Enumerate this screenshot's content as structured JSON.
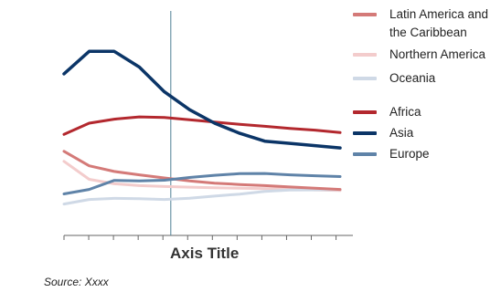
{
  "chart_data": {
    "type": "line",
    "x": [
      1,
      2,
      3,
      4,
      5,
      6,
      7,
      8,
      9,
      10,
      11,
      12
    ],
    "xlabel": "Axis Title",
    "ylabel": "",
    "ylim": [
      0,
      100
    ],
    "grid": false,
    "legend_position": "right",
    "marker_x": 5,
    "series": [
      {
        "name": "Latin America and the Caribbean",
        "color": "#d47a78",
        "width": 3,
        "values": [
          37.5,
          31.0,
          28.5,
          27.0,
          25.6,
          24.3,
          23.3,
          22.7,
          22.2,
          21.6,
          21.0,
          20.5
        ]
      },
      {
        "name": "Northern America",
        "color": "#f3cccc",
        "width": 3,
        "values": [
          33.0,
          25.0,
          23.0,
          22.2,
          21.8,
          21.5,
          21.2,
          21.0,
          20.8,
          20.6,
          20.3,
          20.0
        ]
      },
      {
        "name": "Oceania",
        "color": "#cfd9e6",
        "width": 3,
        "values": [
          14.0,
          16.0,
          16.5,
          16.4,
          16.0,
          16.6,
          17.5,
          18.4,
          19.6,
          20.2,
          20.3,
          20.4
        ]
      },
      {
        "name": "Africa",
        "color": "#b3282e",
        "width": 3,
        "values": [
          45.0,
          50.0,
          51.8,
          52.8,
          52.5,
          51.5,
          50.5,
          49.5,
          48.6,
          47.7,
          46.9,
          45.8
        ]
      },
      {
        "name": "Asia",
        "color": "#0b3567",
        "width": 3.5,
        "values": [
          72.0,
          82.0,
          82.0,
          75.0,
          64.0,
          56.0,
          50.0,
          45.5,
          42.0,
          41.0,
          40.0,
          39.0
        ]
      },
      {
        "name": "Europe",
        "color": "#5f83a8",
        "width": 3,
        "values": [
          18.5,
          20.5,
          24.5,
          24.3,
          24.6,
          25.8,
          26.8,
          27.5,
          27.6,
          27.0,
          26.6,
          26.2
        ]
      }
    ]
  },
  "source": "Source: Xxxx"
}
